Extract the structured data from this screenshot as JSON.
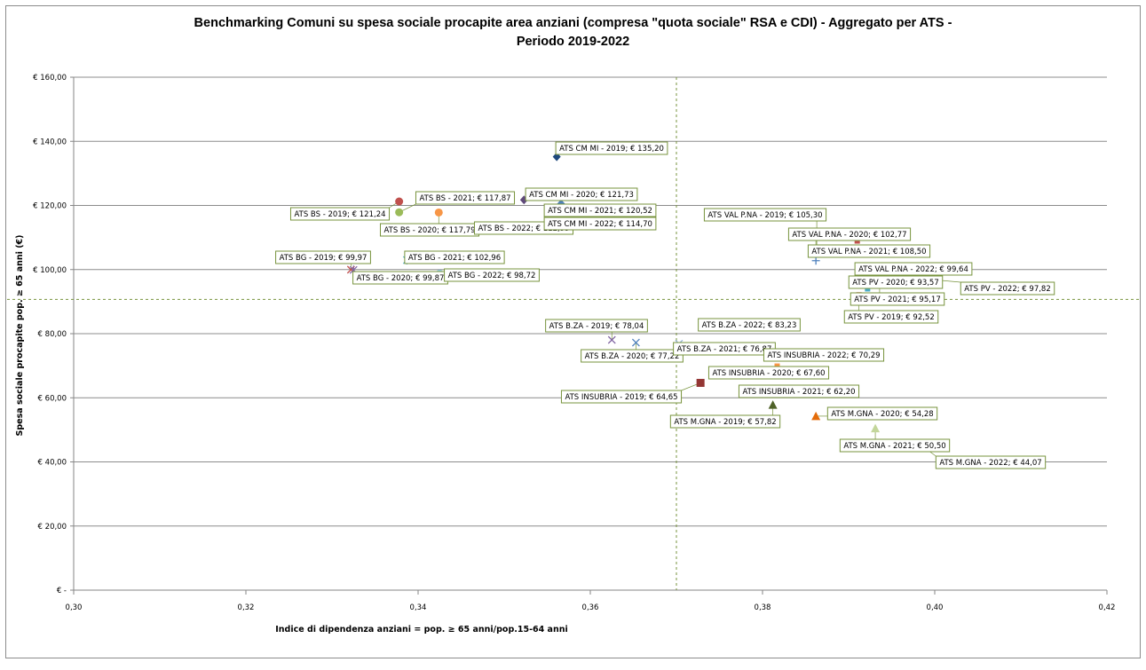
{
  "chart_data": {
    "type": "scatter",
    "title_lines": [
      "Benchmarking Comuni su spesa sociale procapite area anziani (compresa \"quota sociale\" RSA e CDI) - Aggregato per ATS -",
      "Periodo 2019-2022"
    ],
    "xlabel": "Indice di dipendenza anziani = pop. ≥ 65 anni/pop.15-64 anni",
    "ylabel": "Spesa sociale procapite pop. ≥ 65 anni (€)",
    "xlim": [
      0.3,
      0.42
    ],
    "ylim": [
      0,
      160
    ],
    "x_ticks": [
      "0,30",
      "0,32",
      "0,34",
      "0,36",
      "0,38",
      "0,40",
      "0,42"
    ],
    "x_tick_values": [
      0.3,
      0.32,
      0.34,
      0.36,
      0.38,
      0.4,
      0.42
    ],
    "y_ticks": [
      "€ -",
      "€ 20,00",
      "€ 40,00",
      "€ 60,00",
      "€ 80,00",
      "€ 100,00",
      "€ 120,00",
      "€ 140,00",
      "€ 160,00"
    ],
    "y_tick_values": [
      0,
      20,
      40,
      60,
      80,
      100,
      120,
      140,
      160
    ],
    "grid": "horizontal",
    "reference_lines": {
      "x": 0.37,
      "y": 90.7
    },
    "points": [
      {
        "label": "ATS BG - 2019; € 99,97",
        "x": 0.3322,
        "y": 99.97,
        "marker": "x",
        "color": "#c0504d"
      },
      {
        "label": "ATS BG - 2020; € 99,87",
        "x": 0.3325,
        "y": 99.87,
        "marker": "star",
        "color": "#8064a2"
      },
      {
        "label": "ATS BG - 2021; € 102,96",
        "x": 0.3387,
        "y": 102.96,
        "marker": "star",
        "color": "#4bacc6"
      },
      {
        "label": "ATS BG - 2022; € 98,72",
        "x": 0.3425,
        "y": 98.72,
        "marker": "circle",
        "color": "#93cddd"
      },
      {
        "label": "ATS BS - 2019; € 121,24",
        "x": 0.3378,
        "y": 121.24,
        "marker": "circle",
        "color": "#c0504d"
      },
      {
        "label": "ATS BS - 2020; € 117,79",
        "x": 0.3424,
        "y": 117.79,
        "marker": "circle",
        "color": "#f79646"
      },
      {
        "label": "ATS BS - 2021; € 117,87",
        "x": 0.3378,
        "y": 117.87,
        "marker": "circle",
        "color": "#9bbb59"
      },
      {
        "label": "ATS BS - 2022; € 112,99",
        "x": 0.3465,
        "y": 112.99,
        "marker": "circle",
        "color": "#f79646"
      },
      {
        "label": "ATS CM MI - 2019; € 135,20",
        "x": 0.3561,
        "y": 135.2,
        "marker": "diamond",
        "color": "#1f497d"
      },
      {
        "label": "ATS CM MI - 2020; € 121,73",
        "x": 0.3523,
        "y": 121.73,
        "marker": "diamond",
        "color": "#604a7b"
      },
      {
        "label": "ATS CM MI - 2021; € 120,52",
        "x": 0.3566,
        "y": 120.52,
        "marker": "diamond",
        "color": "#4f81bd"
      },
      {
        "label": "ATS CM MI - 2022; € 114,70",
        "x": 0.3557,
        "y": 114.7,
        "marker": "dash",
        "color": "#9bbb59"
      },
      {
        "label": "ATS B.ZA - 2019; € 78,04",
        "x": 0.3625,
        "y": 78.04,
        "marker": "x",
        "color": "#8064a2"
      },
      {
        "label": "ATS B.ZA - 2020; € 77,22",
        "x": 0.3653,
        "y": 77.22,
        "marker": "x",
        "color": "#4f81bd"
      },
      {
        "label": "ATS B.ZA - 2021; € 76,87",
        "x": 0.3703,
        "y": 76.87,
        "marker": "x",
        "color": "#95b3d7"
      },
      {
        "label": "ATS B.ZA - 2022; € 83,23",
        "x": 0.3735,
        "y": 83.23,
        "marker": "diamond",
        "color": "#b3a2c7"
      },
      {
        "label": "ATS INSUBRIA - 2019; € 64,65",
        "x": 0.3728,
        "y": 64.65,
        "marker": "square",
        "color": "#943634"
      },
      {
        "label": "ATS INSUBRIA - 2020; € 67,60",
        "x": 0.3763,
        "y": 67.6,
        "marker": "square",
        "color": "#31859c"
      },
      {
        "label": "ATS INSUBRIA - 2021; € 62,20",
        "x": 0.3797,
        "y": 62.2,
        "marker": "square",
        "color": "#d99694"
      },
      {
        "label": "ATS INSUBRIA - 2022; € 70,29",
        "x": 0.3817,
        "y": 70.29,
        "marker": "dash",
        "color": "#f79646"
      },
      {
        "label": "ATS M.GNA - 2019; € 57,82",
        "x": 0.3812,
        "y": 57.82,
        "marker": "triangle",
        "color": "#4f6228"
      },
      {
        "label": "ATS M.GNA - 2020; € 54,28",
        "x": 0.3862,
        "y": 54.28,
        "marker": "triangle",
        "color": "#e46c0a"
      },
      {
        "label": "ATS M.GNA - 2021; € 50,50",
        "x": 0.3931,
        "y": 50.5,
        "marker": "triangle",
        "color": "#c3d69b"
      },
      {
        "label": "ATS M.GNA - 2022; € 44,07",
        "x": 0.399,
        "y": 44.07,
        "marker": "dash",
        "color": "#f79646"
      },
      {
        "label": "ATS VAL P.NA - 2019; € 105,30",
        "x": 0.3863,
        "y": 105.3,
        "marker": "plus",
        "color": "#4f81bd"
      },
      {
        "label": "ATS VAL P.NA - 2020; € 102,77",
        "x": 0.3862,
        "y": 102.77,
        "marker": "plus",
        "color": "#4f81bd"
      },
      {
        "label": "ATS VAL P.NA - 2021; € 108,50",
        "x": 0.391,
        "y": 108.5,
        "marker": "dash",
        "color": "#c0504d"
      },
      {
        "label": "ATS VAL P.NA - 2022; € 99,64",
        "x": 0.3913,
        "y": 99.64,
        "marker": "x",
        "color": "#b3a2c7"
      },
      {
        "label": "ATS PV - 2019; € 92,52",
        "x": 0.3912,
        "y": 92.52,
        "marker": "dash",
        "color": "#c0504d"
      },
      {
        "label": "ATS PV - 2020; € 93,57",
        "x": 0.3922,
        "y": 93.57,
        "marker": "dash",
        "color": "#4bacc6"
      },
      {
        "label": "ATS PV - 2021; € 95,17",
        "x": 0.3936,
        "y": 95.17,
        "marker": "dash",
        "color": "#9bbb59"
      },
      {
        "label": "ATS PV - 2022; € 97,82",
        "x": 0.3958,
        "y": 97.82,
        "marker": "dash",
        "color": "#f79646"
      }
    ]
  }
}
